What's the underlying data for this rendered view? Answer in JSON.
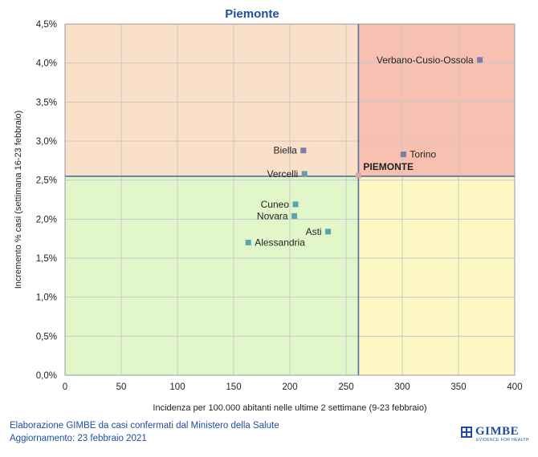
{
  "chart_data": {
    "type": "scatter",
    "title": "Piemonte",
    "xlabel": "Incidenza per 100.000 abitanti nelle ultime 2 settimane (9-23 febbraio)",
    "ylabel": "Incremento % casi (settimana 16-23 febbraio)",
    "xlim": [
      0,
      400
    ],
    "ylim": [
      0,
      4.5
    ],
    "x_ticks": [
      "0",
      "50",
      "100",
      "150",
      "200",
      "250",
      "300",
      "350",
      "400"
    ],
    "y_ticks": [
      "0,0%",
      "0,5%",
      "1,0%",
      "1,5%",
      "2,0%",
      "2,5%",
      "3,0%",
      "3,5%",
      "4,0%",
      "4,5%"
    ],
    "grid": true,
    "reference_lines": {
      "x": 261,
      "y": 2.55
    },
    "quadrant_colors": {
      "top_left": "#fadfc9",
      "top_right": "#f8c0b0",
      "bottom_left": "#e2f7c9",
      "bottom_right": "#fdf7c4"
    },
    "points": [
      {
        "label": "Verbano-Cusio-Ossola",
        "x": 369,
        "y": 4.04,
        "label_pos": "left",
        "color": "#7a7ea8"
      },
      {
        "label": "Torino",
        "x": 301,
        "y": 2.83,
        "label_pos": "right",
        "color": "#7a7ea8"
      },
      {
        "label": "Biella",
        "x": 212,
        "y": 2.88,
        "label_pos": "left",
        "color": "#7a7ea8"
      },
      {
        "label": "Vercelli",
        "x": 213,
        "y": 2.58,
        "label_pos": "left",
        "color": "#6a9aa6"
      },
      {
        "label": "PIEMONTE",
        "x": 261,
        "y": 2.56,
        "label_pos": "right-up",
        "color": "#d4a8a0",
        "bold": true
      },
      {
        "label": "Cuneo",
        "x": 205,
        "y": 2.19,
        "label_pos": "left",
        "color": "#5aa4b0"
      },
      {
        "label": "Novara",
        "x": 204,
        "y": 2.04,
        "label_pos": "left",
        "color": "#5aa4b0"
      },
      {
        "label": "Asti",
        "x": 234,
        "y": 1.84,
        "label_pos": "left",
        "color": "#5aa4b0"
      },
      {
        "label": "Alessandria",
        "x": 163,
        "y": 1.7,
        "label_pos": "right",
        "color": "#5aa4b0"
      }
    ]
  },
  "footer": {
    "line1": "Elaborazione GIMBE da casi confermati dal Ministero della Salute",
    "line2": "Aggiornamento: 23 febbraio 2021"
  },
  "logo": {
    "text": "GIMBE",
    "subtitle": "EVIDENCE FOR HEALTH",
    "color": "#1f4e9c"
  }
}
